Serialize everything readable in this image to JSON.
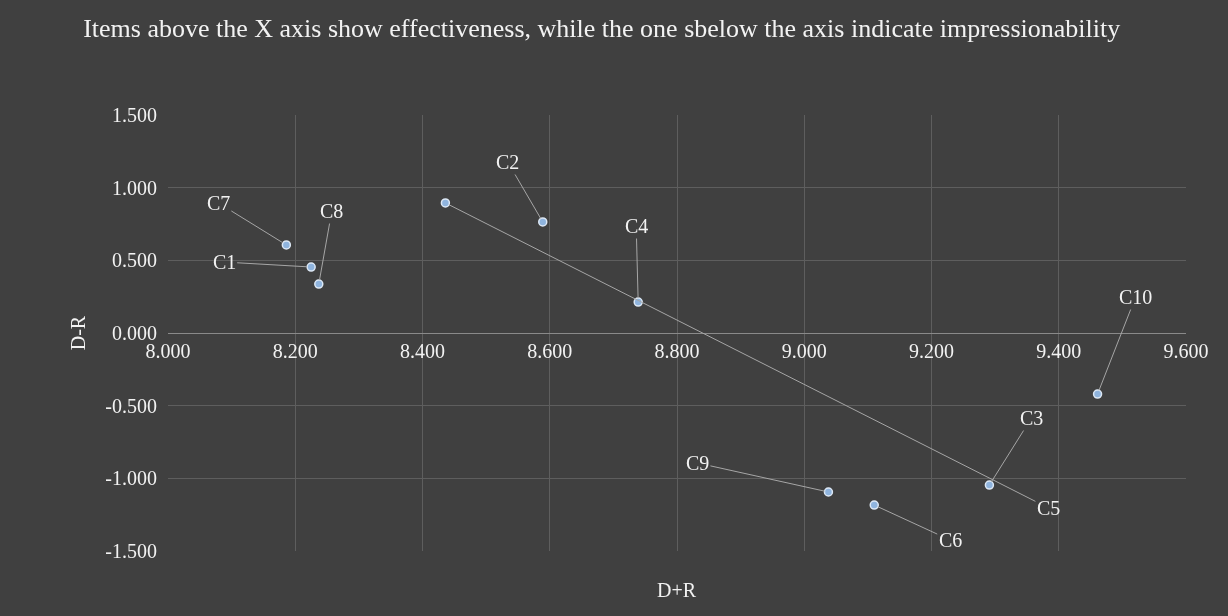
{
  "chart_data": {
    "type": "scatter",
    "title": "Items above the X axis show effectiveness, while the one sbelow the axis indicate impressionability",
    "xlabel": "D+R",
    "ylabel": "D-R",
    "x": [
      8.186,
      8.225,
      8.237,
      8.436,
      8.589,
      8.739,
      9.461,
      9.291,
      9.038,
      9.11
    ],
    "values": [
      0.606,
      0.454,
      0.337,
      0.895,
      0.764,
      0.213,
      -0.42,
      -1.046,
      -1.094,
      -1.184
    ],
    "color": "#8fb4de",
    "marker": "circle",
    "grid": true,
    "legend": false,
    "xlim": [
      8,
      9.6
    ],
    "ylim": [
      -1.5,
      1.5
    ],
    "xticks": [
      {
        "value": 8,
        "label": "8.000"
      },
      {
        "value": 8.2,
        "label": "8.200"
      },
      {
        "value": 8.4,
        "label": "8.400"
      },
      {
        "value": 8.6,
        "label": "8.600"
      },
      {
        "value": 8.8,
        "label": "8.800"
      },
      {
        "value": 9,
        "label": "9.000"
      },
      {
        "value": 9.2,
        "label": "9.200"
      },
      {
        "value": 9.4,
        "label": "9.400"
      },
      {
        "value": 9.6,
        "label": "9.600"
      }
    ],
    "yticks": [
      {
        "value": -1.5,
        "label": "-1.500"
      },
      {
        "value": -1,
        "label": "-1.000"
      },
      {
        "value": -0.5,
        "label": "-0.500"
      },
      {
        "value": 0,
        "label": "0.000"
      },
      {
        "value": 0.5,
        "label": "0.500"
      },
      {
        "value": 1,
        "label": "1.000"
      },
      {
        "value": 1.5,
        "label": "1.500"
      }
    ],
    "annotations": [
      {
        "text": "C7",
        "x": 8.186,
        "y": 0.606
      },
      {
        "text": "C1",
        "x": 8.225,
        "y": 0.454
      },
      {
        "text": "C8",
        "x": 8.237,
        "y": 0.337
      },
      {
        "text": "C5",
        "x": 8.436,
        "y": 0.895
      },
      {
        "text": "C2",
        "x": 8.589,
        "y": 0.764
      },
      {
        "text": "C4",
        "x": 8.739,
        "y": 0.213
      },
      {
        "text": "C10",
        "x": 9.461,
        "y": -0.42
      },
      {
        "text": "C3",
        "x": 9.291,
        "y": -1.046
      },
      {
        "text": "C9",
        "x": 9.038,
        "y": -1.094
      },
      {
        "text": "C6",
        "x": 9.11,
        "y": -1.184
      }
    ]
  }
}
